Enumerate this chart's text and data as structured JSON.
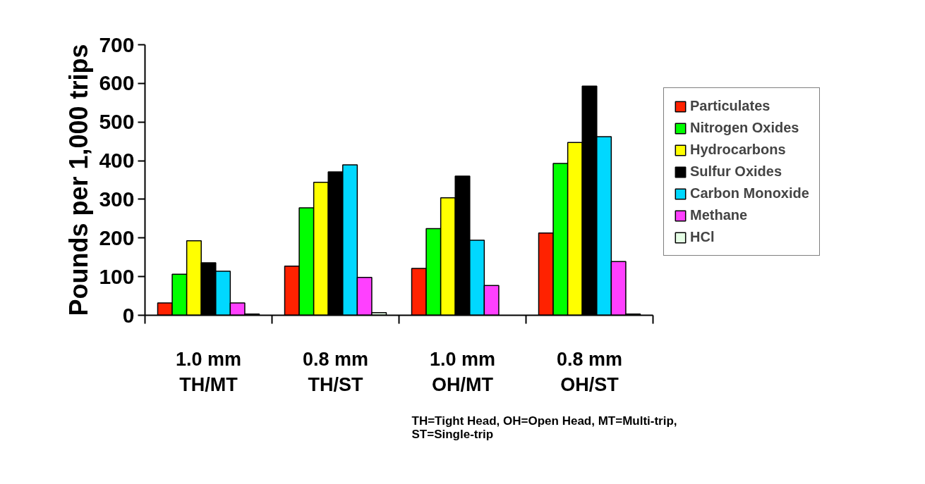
{
  "chart_data": {
    "type": "bar",
    "ylabel": "Pounds per 1,000 trips",
    "categories": [
      "1.0 mm\nTH/MT",
      "0.8 mm\nTH/ST",
      "1.0 mm\nOH/MT",
      "0.8 mm\nOH/ST"
    ],
    "series": [
      {
        "name": "Particulates",
        "color": "#ff2200",
        "values": [
          32,
          127,
          121,
          213
        ]
      },
      {
        "name": "Nitrogen Oxides",
        "color": "#00ff00",
        "values": [
          106,
          278,
          224,
          393
        ]
      },
      {
        "name": "Hydrocarbons",
        "color": "#ffff00",
        "values": [
          193,
          344,
          304,
          447
        ]
      },
      {
        "name": "Sulfur Oxides",
        "color": "#000000",
        "values": [
          136,
          371,
          360,
          593
        ]
      },
      {
        "name": "Carbon Monoxide",
        "color": "#00d8ff",
        "values": [
          114,
          389,
          194,
          462
        ]
      },
      {
        "name": "Methane",
        "color": "#ff40ff",
        "values": [
          32,
          98,
          77,
          139
        ]
      },
      {
        "name": "HCl",
        "color": "#e6ffe6",
        "values": [
          3,
          7,
          null,
          3
        ]
      }
    ],
    "ylim": [
      0,
      700
    ],
    "yticks": [
      0,
      100,
      200,
      300,
      400,
      500,
      600,
      700
    ],
    "grid": false,
    "legend": "top right",
    "annotations": [
      "TH=Tight Head, OH=Open Head, MT=Multi-trip,\nST=Single-trip"
    ]
  }
}
